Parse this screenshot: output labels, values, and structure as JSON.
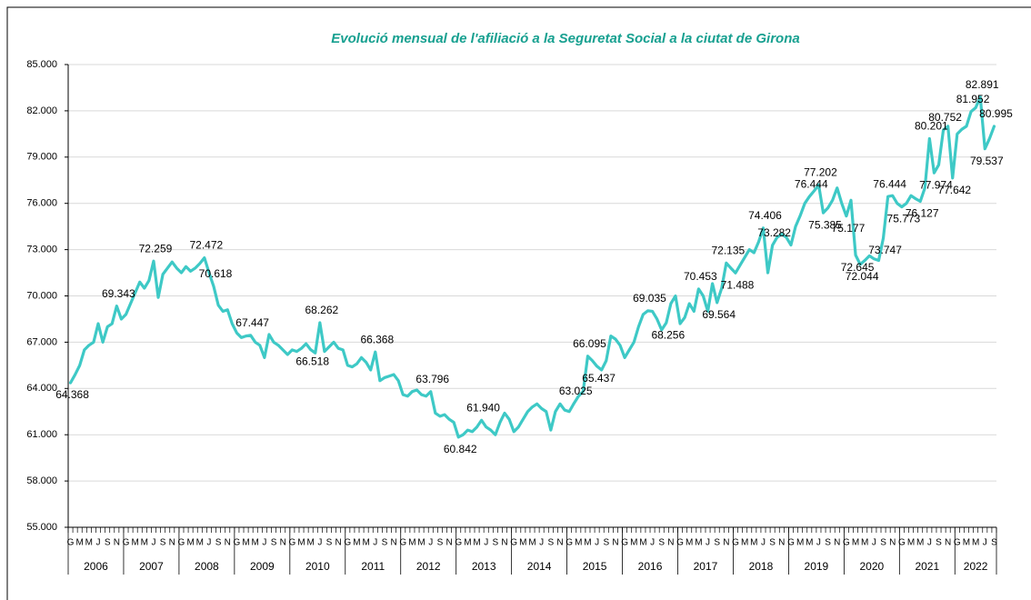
{
  "chart_data": {
    "type": "line",
    "title": "Evolució mensual de l'afiliació a la Seguretat Social a la ciutat de Girona",
    "categories": [
      "G",
      null,
      "M",
      null,
      "M",
      null,
      "J",
      null,
      "S",
      null,
      "N",
      null,
      "G",
      null,
      "M",
      null,
      "M",
      null,
      "J",
      null,
      "S",
      null,
      "N",
      null,
      "G",
      null,
      "M",
      null,
      "M",
      null,
      "J",
      null,
      "S",
      null,
      "N",
      null,
      "G",
      null,
      "M",
      null,
      "M",
      null,
      "J",
      null,
      "S",
      null,
      "N",
      null,
      "G",
      null,
      "M",
      null,
      "M",
      null,
      "J",
      null,
      "S",
      null,
      "N",
      null,
      "G",
      null,
      "M",
      null,
      "M",
      null,
      "J",
      null,
      "S",
      null,
      "N",
      null,
      "G",
      null,
      "M",
      null,
      "M",
      null,
      "J",
      null,
      "S",
      null,
      "N",
      null,
      "G",
      null,
      "M",
      null,
      "M",
      null,
      "J",
      null,
      "S",
      null,
      "N",
      null,
      "G",
      null,
      "M",
      null,
      "M",
      null,
      "J",
      null,
      "S",
      null,
      "N",
      null,
      "G",
      null,
      "M",
      null,
      "M",
      null,
      "J",
      null,
      "S",
      null,
      "N",
      null,
      "G",
      null,
      "M",
      null,
      "M",
      null,
      "J",
      null,
      "S",
      null,
      "N",
      null,
      "G",
      null,
      "M",
      null,
      "M",
      null,
      "J",
      null,
      "S",
      null,
      "N",
      null,
      "G",
      null,
      "M",
      null,
      "M",
      null,
      "J",
      null,
      "S",
      null,
      "N",
      null,
      "G",
      null,
      "M",
      null,
      "M",
      null,
      "J",
      null,
      "S",
      null,
      "N",
      null,
      "G",
      null,
      "M",
      null,
      "M",
      null,
      "J",
      null,
      "S",
      null,
      "N",
      null,
      "G",
      null,
      "M",
      null,
      "M",
      null,
      "J",
      null,
      "S",
      null,
      "N",
      null,
      "G",
      null,
      "M",
      null,
      "M",
      null,
      "J",
      null,
      "S"
    ],
    "years": [
      "2006",
      "2007",
      "2008",
      "2009",
      "2010",
      "2011",
      "2012",
      "2013",
      "2014",
      "2015",
      "2016",
      "2017",
      "2018",
      "2019",
      "2020",
      "2021",
      "2022"
    ],
    "values": [
      64368,
      64900,
      65500,
      66500,
      66800,
      67000,
      68200,
      67000,
      68000,
      68200,
      69343,
      68500,
      68800,
      69500,
      70200,
      70900,
      70500,
      71000,
      72259,
      69900,
      71400,
      71800,
      72200,
      71800,
      71500,
      71900,
      71600,
      71800,
      72100,
      72472,
      71500,
      70618,
      69400,
      69000,
      69100,
      68200,
      67600,
      67300,
      67400,
      67447,
      67000,
      66800,
      66000,
      67500,
      67000,
      66800,
      66500,
      66200,
      66500,
      66400,
      66600,
      66900,
      66518,
      66300,
      68262,
      66400,
      66700,
      67000,
      66600,
      66500,
      65500,
      65400,
      65600,
      66000,
      65700,
      65200,
      66368,
      64500,
      64700,
      64800,
      64900,
      64500,
      63600,
      63500,
      63800,
      63900,
      63600,
      63500,
      63796,
      62400,
      62200,
      62300,
      62000,
      61800,
      60842,
      61000,
      61300,
      61200,
      61500,
      61940,
      61500,
      61300,
      61000,
      61800,
      62400,
      62000,
      61200,
      61500,
      62000,
      62500,
      62800,
      63000,
      62700,
      62500,
      61300,
      62500,
      63000,
      62600,
      62500,
      63025,
      63500,
      63800,
      66095,
      65800,
      65437,
      65200,
      65800,
      67400,
      67200,
      66800,
      66000,
      66500,
      67000,
      68000,
      68800,
      69035,
      69000,
      68500,
      67800,
      68256,
      69500,
      70000,
      68200,
      68600,
      69500,
      69000,
      70453,
      70000,
      69000,
      70800,
      69564,
      70500,
      72135,
      71800,
      71488,
      72000,
      72500,
      73000,
      72800,
      73500,
      74406,
      71500,
      73282,
      73800,
      74000,
      73800,
      73300,
      74500,
      75200,
      76000,
      76444,
      76800,
      77202,
      75385,
      75700,
      76200,
      77000,
      76000,
      75177,
      76200,
      72645,
      72044,
      72300,
      72600,
      72400,
      72300,
      73747,
      76444,
      76500,
      76000,
      75773,
      76000,
      76500,
      76300,
      76127,
      77000,
      80201,
      77974,
      78500,
      80752,
      81000,
      77642,
      80500,
      80800,
      81000,
      81952,
      82200,
      82891,
      79537,
      80200,
      80995
    ],
    "value_labels": [
      "64.368",
      null,
      null,
      null,
      null,
      null,
      null,
      null,
      null,
      null,
      "69.343",
      null,
      null,
      null,
      null,
      null,
      null,
      null,
      "72.259",
      null,
      null,
      null,
      null,
      null,
      null,
      null,
      null,
      null,
      null,
      "72.472",
      null,
      "70.618",
      null,
      null,
      null,
      null,
      null,
      null,
      null,
      "67.447",
      null,
      null,
      null,
      null,
      null,
      null,
      null,
      null,
      null,
      null,
      null,
      null,
      "66.518",
      null,
      "68.262",
      null,
      null,
      null,
      null,
      null,
      null,
      null,
      null,
      null,
      null,
      null,
      "66.368",
      null,
      null,
      null,
      null,
      null,
      null,
      null,
      null,
      null,
      null,
      null,
      "63.796",
      null,
      null,
      null,
      null,
      null,
      "60.842",
      null,
      null,
      null,
      null,
      "61.940",
      null,
      null,
      null,
      null,
      null,
      null,
      null,
      null,
      null,
      null,
      null,
      null,
      null,
      null,
      null,
      null,
      null,
      null,
      null,
      "63.025",
      null,
      null,
      "66.095",
      null,
      "65.437",
      null,
      null,
      null,
      null,
      null,
      null,
      null,
      null,
      null,
      null,
      "69.035",
      null,
      null,
      null,
      "68.256",
      null,
      null,
      null,
      null,
      null,
      null,
      "70.453",
      null,
      null,
      null,
      "69.564",
      null,
      "72.135",
      null,
      "71.488",
      null,
      null,
      null,
      null,
      null,
      "74.406",
      null,
      "73.282",
      null,
      null,
      null,
      null,
      null,
      null,
      null,
      "76.444",
      null,
      "77.202",
      "75.385",
      null,
      null,
      null,
      null,
      "75.177",
      null,
      "72.645",
      "72.044",
      null,
      null,
      null,
      null,
      "73.747",
      "76.444",
      null,
      null,
      "75.773",
      null,
      null,
      null,
      "76.127",
      null,
      "80.201",
      "77.974",
      null,
      "80.752",
      null,
      "77.642",
      null,
      null,
      null,
      "81.952",
      null,
      "82.891",
      "79.537",
      null,
      "80.995"
    ],
    "color": "#3ec9c6",
    "ylim": [
      55000,
      85000
    ],
    "yticks": [
      {
        "value": 55000,
        "label": "55.000"
      },
      {
        "value": 58000,
        "label": "58.000"
      },
      {
        "value": 61000,
        "label": "61.000"
      },
      {
        "value": 64000,
        "label": "64.000"
      },
      {
        "value": 67000,
        "label": "67.000"
      },
      {
        "value": 70000,
        "label": "70.000"
      },
      {
        "value": 73000,
        "label": "73.000"
      },
      {
        "value": 76000,
        "label": "76.000"
      },
      {
        "value": 79000,
        "label": "79.000"
      },
      {
        "value": 82000,
        "label": "82.000"
      },
      {
        "value": 85000,
        "label": "85.000"
      }
    ],
    "grid": true
  }
}
